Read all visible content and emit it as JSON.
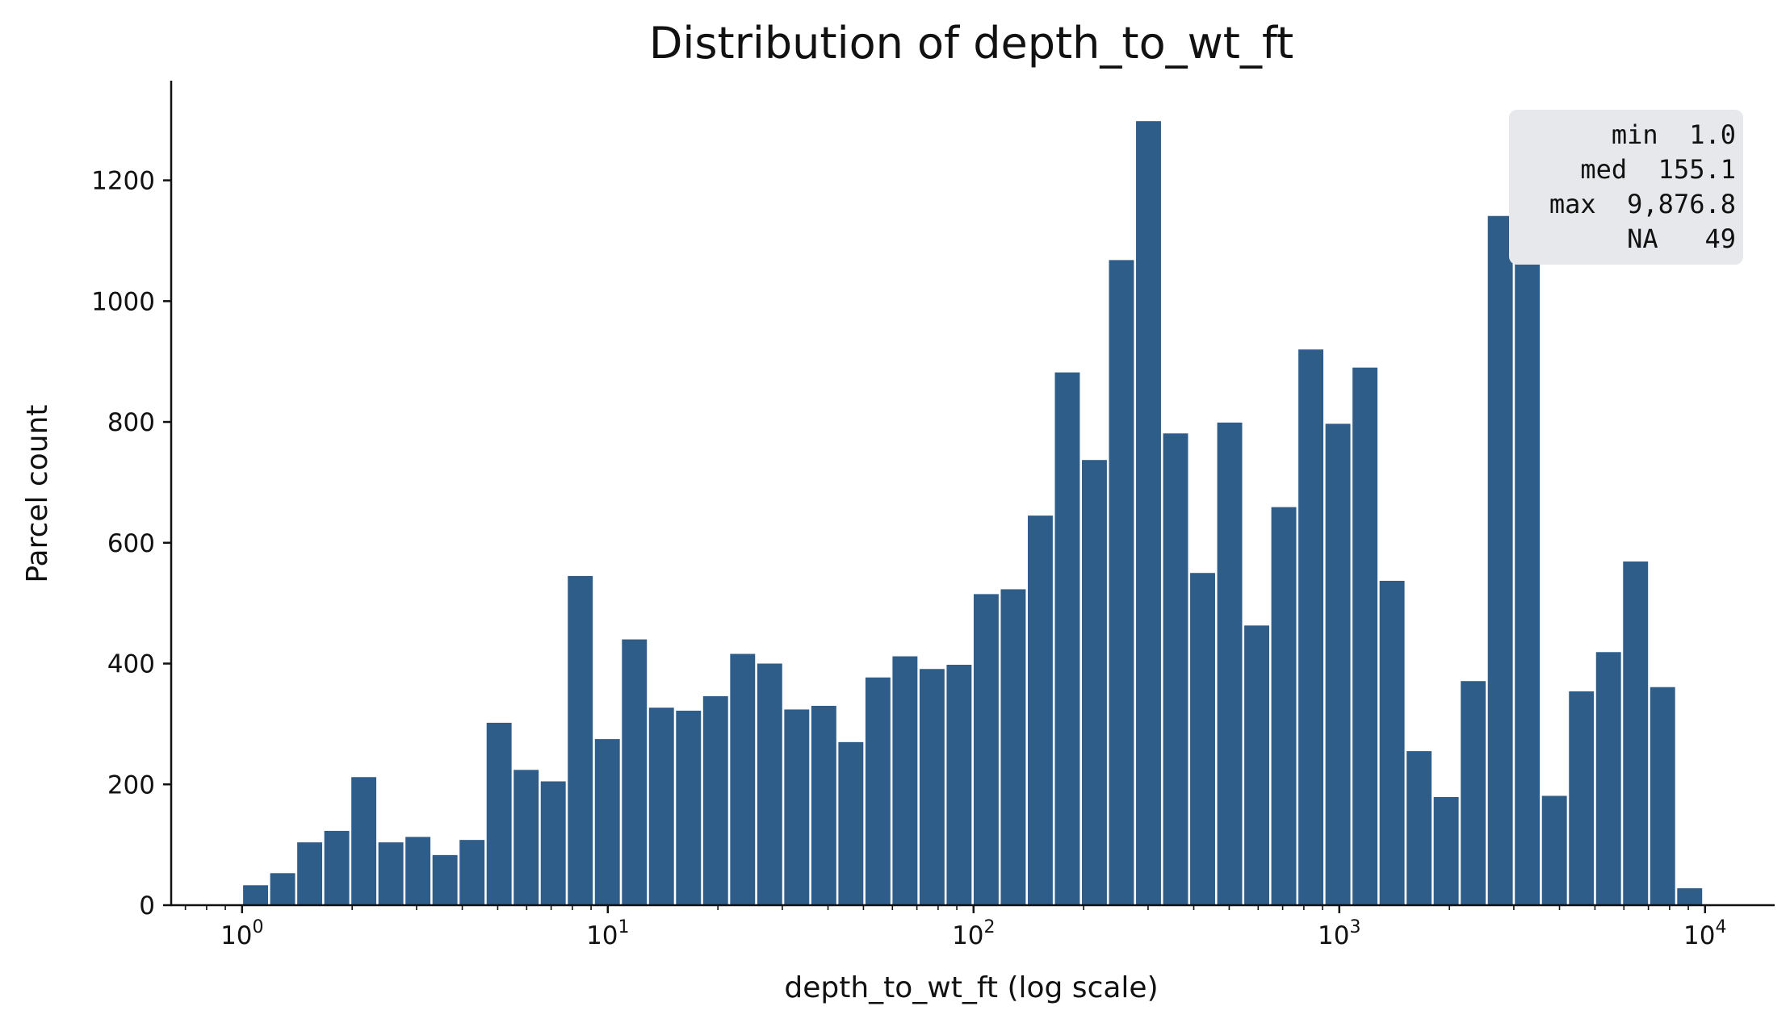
{
  "chart_data": {
    "type": "bar",
    "title": "Distribution of depth_to_wt_ft",
    "xlabel": "depth_to_wt_ft (log scale)",
    "ylabel": "Parcel count",
    "x_scale": "log",
    "xlim": [
      0.64,
      15500
    ],
    "ylim": [
      0,
      1365
    ],
    "y_ticks": [
      0,
      200,
      400,
      600,
      800,
      1000,
      1200
    ],
    "x_ticks": [
      {
        "value": 1,
        "base": "10",
        "exp": "0"
      },
      {
        "value": 10,
        "base": "10",
        "exp": "1"
      },
      {
        "value": 100,
        "base": "10",
        "exp": "2"
      },
      {
        "value": 1000,
        "base": "10",
        "exp": "3"
      },
      {
        "value": 10000,
        "base": "10",
        "exp": "4"
      }
    ],
    "bin_edges_log10": [
      0.0,
      3.995
    ],
    "values": [
      33,
      53,
      104,
      123,
      212,
      104,
      113,
      83,
      108,
      302,
      224,
      205,
      545,
      275,
      440,
      327,
      322,
      346,
      416,
      400,
      324,
      330,
      270,
      377,
      412,
      391,
      398,
      515,
      523,
      645,
      882,
      737,
      1068,
      1298,
      781,
      550,
      799,
      463,
      659,
      920,
      797,
      890,
      537,
      255,
      179,
      371,
      1141,
      1168,
      181,
      354,
      419,
      569,
      361,
      28
    ],
    "bar_color": "#2f5d8a",
    "grid": false,
    "stats_box": {
      "placement": "top-right",
      "background": "#e6e8eb",
      "lines": [
        "min  1.0",
        "med  155.1",
        "max  9,876.8",
        "NA   49"
      ]
    }
  }
}
